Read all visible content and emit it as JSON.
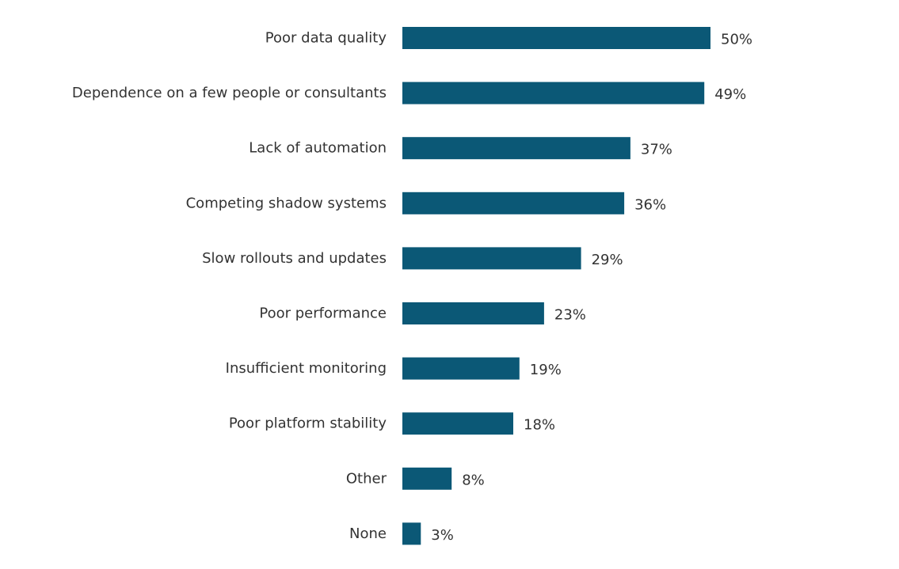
{
  "chart_data": {
    "type": "bar",
    "orientation": "horizontal",
    "categories": [
      "Poor data quality",
      "Dependence on a few people or consultants",
      "Lack of automation",
      "Competing shadow systems",
      "Slow rollouts and updates",
      "Poor performance",
      "Insufficient monitoring",
      "Poor platform stability",
      "Other",
      "None"
    ],
    "values": [
      50,
      49,
      37,
      36,
      29,
      23,
      19,
      18,
      8,
      3
    ],
    "value_labels": [
      "50%",
      "49%",
      "37%",
      "36%",
      "29%",
      "23%",
      "19%",
      "18%",
      "8%",
      "3%"
    ],
    "unit": "%",
    "xlim": [
      0,
      50
    ],
    "grid": false,
    "legend": "none",
    "colors": {
      "bar": "#0b5876",
      "text": "#333333",
      "background": "#ffffff"
    }
  }
}
